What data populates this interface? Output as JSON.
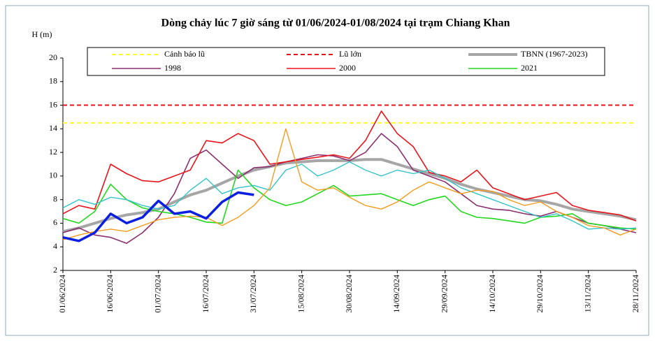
{
  "chart_data": {
    "type": "line",
    "title": "Dòng chảy lúc 7 giờ sáng từ 01/06/2024-01/08/2024 tại trạm Chiang Khan",
    "y_label": "H (m)",
    "x": [
      "01/06/2024",
      "06/06/2024",
      "11/06/2024",
      "16/06/2024",
      "21/06/2024",
      "26/06/2024",
      "01/07/2024",
      "06/07/2024",
      "11/07/2024",
      "16/07/2024",
      "21/07/2024",
      "26/07/2024",
      "31/07/2024",
      "05/08/2024",
      "10/08/2024",
      "15/08/2024",
      "20/08/2024",
      "25/08/2024",
      "30/08/2024",
      "04/09/2024",
      "09/09/2024",
      "14/09/2024",
      "19/09/2024",
      "24/09/2024",
      "29/09/2024",
      "04/10/2024",
      "09/10/2024",
      "14/10/2024",
      "19/10/2024",
      "24/10/2024",
      "29/10/2024",
      "03/11/2024",
      "08/11/2024",
      "13/11/2024",
      "18/11/2024",
      "23/11/2024",
      "28/11/2024"
    ],
    "xlim": [
      "01/06/2024",
      "28/11/2024"
    ],
    "xticks": [
      "01/06/2024",
      "16/06/2024",
      "01/07/2024",
      "16/07/2024",
      "31/07/2024",
      "15/08/2024",
      "30/08/2024",
      "14/09/2024",
      "29/09/2024",
      "14/10/2024",
      "29/10/2024",
      "13/11/2024",
      "28/11/2024"
    ],
    "ylim": [
      2,
      20
    ],
    "yticks": [
      2,
      4,
      6,
      8,
      10,
      12,
      14,
      16,
      18,
      20
    ],
    "grid": false,
    "reference_lines": [
      {
        "name": "Cảnh báo lũ",
        "value": 14.5,
        "color": "#ffff33"
      },
      {
        "name": "Lũ lớn",
        "value": 16,
        "color": "#e8141b"
      }
    ],
    "series": [
      {
        "name": "TBNN (1967-2023)",
        "color": "#a6a6a6",
        "width": 4,
        "values": [
          5.3,
          5.6,
          6.0,
          6.4,
          6.7,
          6.9,
          7.2,
          7.8,
          8.4,
          8.8,
          9.4,
          10.0,
          10.5,
          10.8,
          11.1,
          11.2,
          11.3,
          11.3,
          11.3,
          11.4,
          11.4,
          11.0,
          10.6,
          10.2,
          9.8,
          9.3,
          8.9,
          8.6,
          8.3,
          8.0,
          7.9,
          7.6,
          7.2,
          7.0,
          6.8,
          6.6,
          6.3
        ]
      },
      {
        "name": "1998",
        "color": "#8b2f6e",
        "width": 1.6,
        "values": [
          5.2,
          5.6,
          5.0,
          4.8,
          4.3,
          5.2,
          6.5,
          8.5,
          11.5,
          12.2,
          11.0,
          9.8,
          10.7,
          10.8,
          11.2,
          11.5,
          11.8,
          11.7,
          11.3,
          12.0,
          13.6,
          12.5,
          10.5,
          10.0,
          9.5,
          8.5,
          7.5,
          7.2,
          7.1,
          6.8,
          6.6,
          7.0,
          6.5,
          6.0,
          5.8,
          5.5,
          5.2
        ]
      },
      {
        "name": "2000",
        "color": "#e8141b",
        "width": 1.6,
        "values": [
          6.8,
          7.5,
          7.2,
          11.0,
          10.2,
          9.6,
          9.5,
          10.0,
          10.5,
          13.0,
          12.8,
          13.6,
          13.0,
          11.0,
          11.2,
          11.4,
          11.6,
          11.8,
          11.5,
          13.0,
          15.5,
          13.6,
          12.5,
          10.3,
          10.0,
          9.5,
          10.5,
          9.0,
          8.5,
          8.0,
          8.3,
          8.6,
          7.5,
          7.1,
          6.9,
          6.7,
          6.2
        ]
      },
      {
        "name": "2021",
        "color": "#22d81e",
        "width": 1.6,
        "values": [
          6.4,
          6.0,
          7.0,
          9.3,
          8.0,
          7.3,
          7.0,
          6.8,
          6.5,
          6.1,
          6.0,
          10.5,
          9.0,
          8.0,
          7.5,
          7.8,
          8.5,
          9.2,
          8.3,
          8.4,
          8.5,
          8.0,
          7.5,
          8.0,
          8.3,
          7.0,
          6.5,
          6.4,
          6.2,
          6.0,
          6.5,
          6.6,
          6.8,
          6.0,
          5.8,
          5.6,
          5.5
        ]
      },
      {
        "color": "#33c3c8",
        "width": 1.4,
        "values": [
          7.3,
          8.0,
          7.6,
          8.2,
          8.0,
          7.5,
          7.2,
          7.5,
          8.8,
          9.8,
          8.5,
          9.0,
          9.2,
          8.8,
          10.5,
          11.0,
          10.0,
          10.5,
          11.2,
          10.5,
          10.0,
          10.5,
          10.2,
          10.5,
          9.8,
          9.0,
          8.5,
          8.0,
          7.5,
          7.0,
          6.5,
          6.8,
          6.2,
          5.5,
          5.6,
          5.5,
          5.6
        ]
      },
      {
        "color": "#f39c1f",
        "width": 1.4,
        "values": [
          4.6,
          5.0,
          5.3,
          5.5,
          5.3,
          5.8,
          6.3,
          6.5,
          6.6,
          6.5,
          5.8,
          6.5,
          7.5,
          9.0,
          14.0,
          9.5,
          8.8,
          9.0,
          8.2,
          7.5,
          7.2,
          7.8,
          8.8,
          9.5,
          9.0,
          8.5,
          8.8,
          8.7,
          8.0,
          7.5,
          7.8,
          7.0,
          6.5,
          5.8,
          5.6,
          5.0,
          5.5
        ]
      },
      {
        "color": "#0a1fe0",
        "width": 3.5,
        "values": [
          4.8,
          4.5,
          5.2,
          6.8,
          6.0,
          6.5,
          7.9,
          6.8,
          7.0,
          6.4,
          7.8,
          8.6,
          8.4,
          null,
          null,
          null,
          null,
          null,
          null,
          null,
          null,
          null,
          null,
          null,
          null,
          null,
          null,
          null,
          null,
          null,
          null,
          null,
          null,
          null,
          null,
          null,
          null
        ]
      }
    ]
  }
}
